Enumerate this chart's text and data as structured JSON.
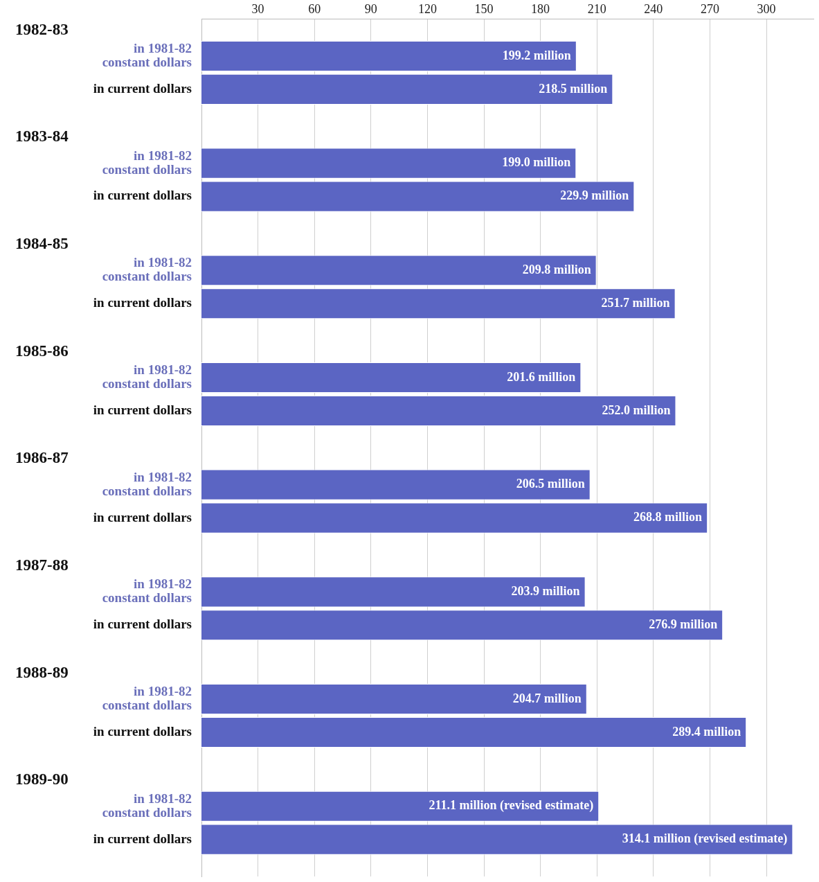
{
  "chart_data": {
    "type": "bar",
    "orientation": "horizontal",
    "categories": [
      "1982-83",
      "1983-84",
      "1984-85",
      "1985-86",
      "1986-87",
      "1987-88",
      "1988-89",
      "1989-90"
    ],
    "series": [
      {
        "name": "in 1981-82 constant dollars",
        "color": "#5b65c3",
        "values": [
          199.2,
          199.0,
          209.8,
          201.6,
          206.5,
          203.9,
          204.7,
          211.1
        ],
        "value_labels": [
          "199.2 million",
          "199.0 million",
          "209.8 million",
          "201.6 million",
          "206.5 million",
          "203.9 million",
          "204.7 million",
          "211.1 million (revised estimate)"
        ]
      },
      {
        "name": "in current dollars",
        "color": "#5b65c3",
        "values": [
          218.5,
          229.9,
          251.7,
          252.0,
          268.8,
          276.9,
          289.4,
          314.1
        ],
        "value_labels": [
          "218.5 million",
          "229.9 million",
          "251.7 million",
          "252.0 million",
          "268.8 million",
          "276.9 million",
          "289.4 million",
          "314.1 million (revised estimate)"
        ]
      }
    ],
    "xlim": [
      0,
      325
    ],
    "xticks": [
      30,
      60,
      90,
      120,
      150,
      180,
      210,
      240,
      270,
      300
    ],
    "grid": "x",
    "legend": false
  }
}
